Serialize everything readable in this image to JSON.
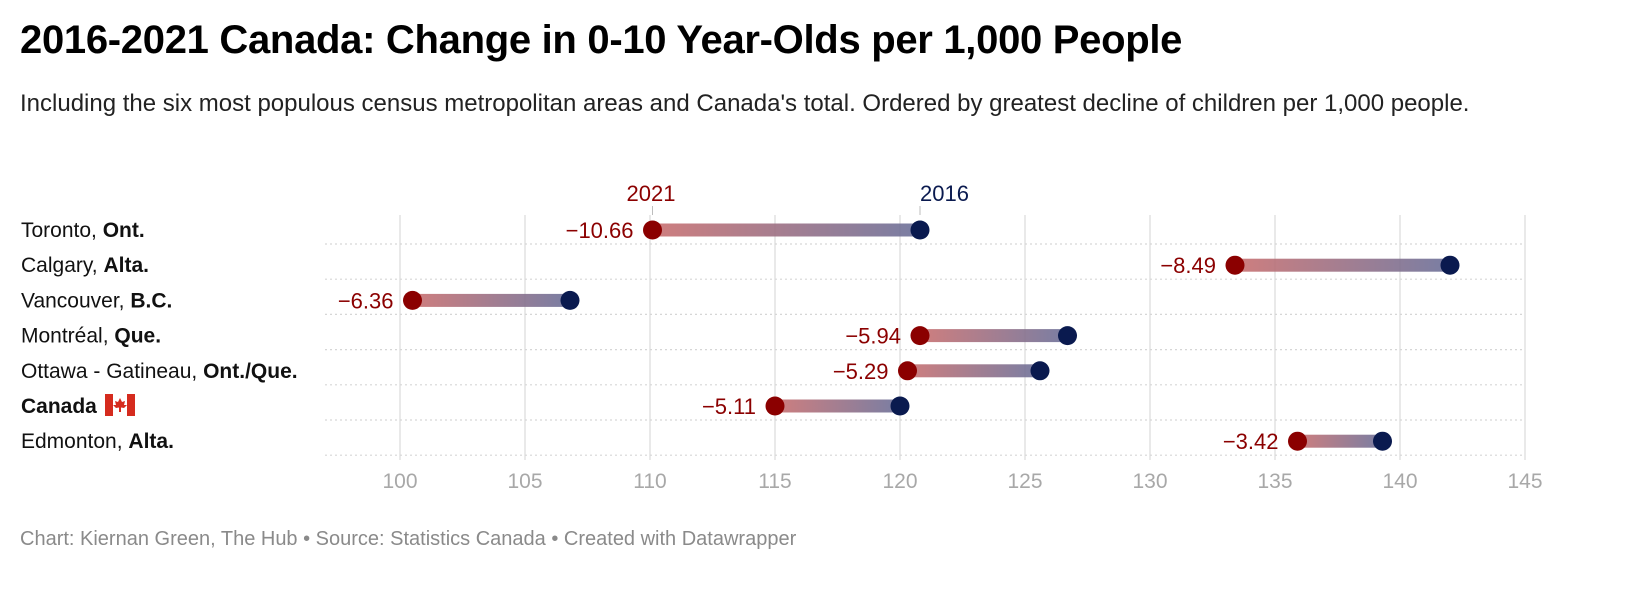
{
  "title": "2016-2021 Canada: Change in 0-10 Year-Olds per 1,000 People",
  "subtitle": "Including the six most populous census metropolitan areas and Canada's total. Ordered by greatest decline of children per 1,000 people.",
  "footer": "Chart: Kiernan Green, The Hub • Source: Statistics Canada • Created with Datawrapper",
  "colors": {
    "y2021": "#8b0000",
    "y2016": "#0a1a4f",
    "grid": "#e2e2e2",
    "tick": "#a8a8a8"
  },
  "chart_data": {
    "type": "dumbbell",
    "xlim": [
      97,
      145
    ],
    "x_ticks": [
      "100",
      "105",
      "110",
      "115",
      "120",
      "125",
      "130",
      "135",
      "140",
      "145"
    ],
    "grid": true,
    "legend": "inline-top",
    "series": [
      {
        "name": "2021",
        "color": "#8b0000"
      },
      {
        "name": "2016",
        "color": "#0a1a4f"
      }
    ],
    "rows": [
      {
        "city": "Toronto, ",
        "province": "Ont.",
        "v2021": 110.1,
        "v2016": 120.8,
        "change": "−10.66"
      },
      {
        "city": "Calgary, ",
        "province": "Alta.",
        "v2021": 133.4,
        "v2016": 142.0,
        "change": "−8.49"
      },
      {
        "city": "Vancouver, ",
        "province": "B.C.",
        "v2021": 100.5,
        "v2016": 106.8,
        "change": "−6.36"
      },
      {
        "city": "Montréal, ",
        "province": "Que.",
        "v2021": 120.8,
        "v2016": 126.7,
        "change": "−5.94"
      },
      {
        "city": "Ottawa - Gatineau, ",
        "province": "Ont./Que.",
        "v2021": 120.3,
        "v2016": 125.6,
        "change": "−5.29"
      },
      {
        "city": "",
        "province": "Canada",
        "v2021": 115.0,
        "v2016": 120.0,
        "change": "−5.11",
        "flag": "canada-flag-icon"
      },
      {
        "city": "Edmonton, ",
        "province": "Alta.",
        "v2021": 135.9,
        "v2016": 139.3,
        "change": "−3.42"
      }
    ]
  }
}
